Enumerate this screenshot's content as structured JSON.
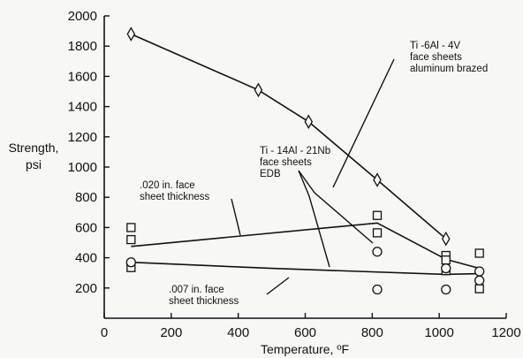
{
  "chart_data": {
    "type": "scatter",
    "title": "",
    "xlabel": "Temperature,  ºF",
    "ylabel_lines": [
      "Strength,",
      "psi"
    ],
    "xlim": [
      0,
      1200
    ],
    "ylim": [
      0,
      2000
    ],
    "x_ticks": [
      0,
      200,
      400,
      600,
      800,
      1000,
      1200
    ],
    "y_ticks": [
      200,
      400,
      600,
      800,
      1000,
      1200,
      1400,
      1600,
      1800,
      2000
    ],
    "grid": false,
    "series": [
      {
        "marker": "diamond",
        "x": [
          80,
          460,
          610,
          815,
          1020
        ],
        "y": [
          1880,
          1510,
          1300,
          915,
          525
        ],
        "curve": {
          "x": [
            80,
            460,
            610,
            815,
            1020
          ],
          "y": [
            1880,
            1510,
            1300,
            915,
            525
          ]
        }
      },
      {
        "marker": "square",
        "x": [
          80,
          80,
          80,
          815,
          815,
          1020,
          1020,
          1020,
          1120,
          1120
        ],
        "y": [
          600,
          520,
          335,
          680,
          565,
          415,
          385,
          315,
          430,
          195
        ],
        "curve": {
          "x": [
            80,
            815,
            1020,
            1120
          ],
          "y": [
            475,
            630,
            390,
            330
          ]
        }
      },
      {
        "marker": "circle",
        "x": [
          80,
          815,
          815,
          1020,
          1020,
          1120,
          1120
        ],
        "y": [
          370,
          440,
          190,
          330,
          190,
          310,
          250
        ],
        "curve": {
          "x": [
            80,
            500,
            1020,
            1120
          ],
          "y": [
            370,
            330,
            290,
            295
          ]
        }
      }
    ],
    "annotations": [
      {
        "lines": [
          "Ti -6Al - 4V",
          "face sheets",
          "aluminum brazed"
        ]
      },
      {
        "lines": [
          "Ti - 14Al - 21Nb",
          "face sheets",
          "EDB"
        ]
      },
      {
        "lines": [
          ".020 in. face",
          "sheet thickness"
        ]
      },
      {
        "lines": [
          ".007 in. face",
          "sheet thickness"
        ]
      }
    ]
  }
}
